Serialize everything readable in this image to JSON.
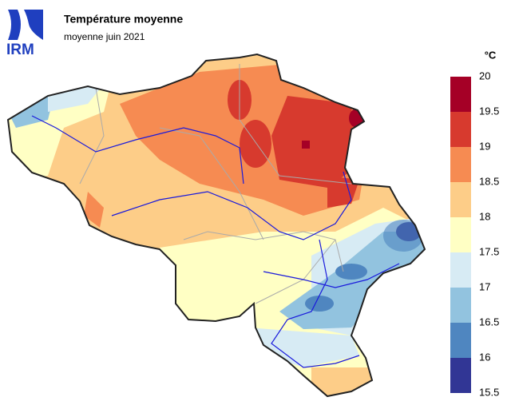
{
  "header": {
    "logo": "IRM",
    "title": "Température moyenne",
    "subtitle": "moyenne juin 2021"
  },
  "legend": {
    "unit": "°C",
    "ticks": [
      20,
      19.5,
      19,
      18.5,
      18,
      17.5,
      17,
      16.5,
      16,
      15.5
    ],
    "colors": [
      "#a50026",
      "#d73a2e",
      "#f68b52",
      "#fdcd88",
      "#ffffc4",
      "#d7ebf4",
      "#92c3df",
      "#4f86c0",
      "#313695"
    ]
  }
}
